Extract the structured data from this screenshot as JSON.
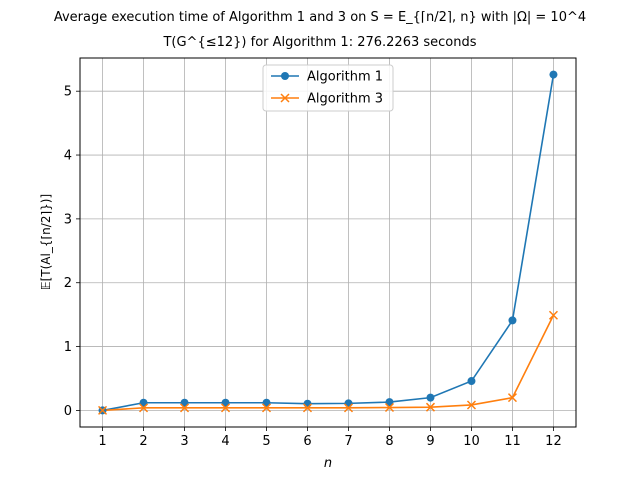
{
  "chart_data": {
    "type": "line",
    "title": "Average execution time of Algorithm 1 and 3 on S = E_{⌈n/2⌉, n} with |Ω| = 10^4",
    "subtitle": "T(G^{≤12}) for Algorithm 1: 276.2263 seconds",
    "xlabel": "n",
    "ylabel": "𝔼[T(Al_{⌈n/2⌉})]",
    "x": [
      1,
      2,
      3,
      4,
      5,
      6,
      7,
      8,
      9,
      10,
      11,
      12
    ],
    "xticks": [
      "1",
      "2",
      "3",
      "4",
      "5",
      "6",
      "7",
      "8",
      "9",
      "10",
      "11",
      "12"
    ],
    "yticks": [
      "0",
      "1",
      "2",
      "3",
      "4",
      "5"
    ],
    "xlim": [
      0.45,
      12.55
    ],
    "ylim": [
      -0.26,
      5.52
    ],
    "grid": true,
    "legend_position": "upper center",
    "series": [
      {
        "name": "Algorithm 1",
        "color": "#1f77b4",
        "marker": "circle",
        "values": [
          0.0,
          0.12,
          0.12,
          0.12,
          0.12,
          0.105,
          0.11,
          0.13,
          0.2,
          0.46,
          1.41,
          5.26
        ]
      },
      {
        "name": "Algorithm 3",
        "color": "#ff7f0e",
        "marker": "x",
        "values": [
          0.0,
          0.04,
          0.04,
          0.04,
          0.04,
          0.04,
          0.04,
          0.045,
          0.05,
          0.085,
          0.2,
          1.49
        ]
      }
    ]
  }
}
